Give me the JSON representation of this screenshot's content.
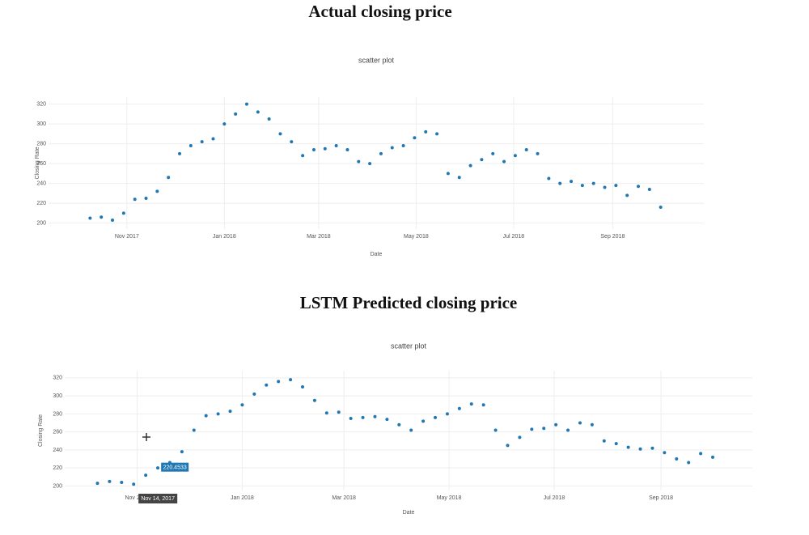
{
  "headings": [
    "Actual closing price",
    "LSTM Predicted closing price"
  ],
  "tooltip": {
    "date": "2017-11-14",
    "date_label": "Nov 14, 2017",
    "value": 220.4533
  },
  "chart_data": [
    {
      "type": "scatter",
      "title": "scatter plot",
      "x_label": "Date",
      "y_label": "Closing Rate",
      "color": "#1f77b4",
      "grid": true,
      "xlim": [
        "2017-09-13",
        "2018-10-28"
      ],
      "ylim": [
        194,
        327
      ],
      "xticks": [
        {
          "value": "2017-11-01",
          "label": "Nov 2017"
        },
        {
          "value": "2018-01-01",
          "label": "Jan 2018"
        },
        {
          "value": "2018-03-01",
          "label": "Mar 2018"
        },
        {
          "value": "2018-05-01",
          "label": "May 2018"
        },
        {
          "value": "2018-07-01",
          "label": "Jul 2018"
        },
        {
          "value": "2018-09-01",
          "label": "Sep 2018"
        }
      ],
      "yticks": [
        200,
        220,
        240,
        260,
        280,
        300,
        320
      ],
      "x": [
        "2017-10-09",
        "2017-10-16",
        "2017-10-23",
        "2017-10-30",
        "2017-11-06",
        "2017-11-13",
        "2017-11-20",
        "2017-11-27",
        "2017-12-04",
        "2017-12-11",
        "2017-12-18",
        "2017-12-25",
        "2018-01-01",
        "2018-01-08",
        "2018-01-15",
        "2018-01-22",
        "2018-01-29",
        "2018-02-05",
        "2018-02-12",
        "2018-02-19",
        "2018-02-26",
        "2018-03-05",
        "2018-03-12",
        "2018-03-19",
        "2018-03-26",
        "2018-04-02",
        "2018-04-09",
        "2018-04-16",
        "2018-04-23",
        "2018-04-30",
        "2018-05-07",
        "2018-05-14",
        "2018-05-21",
        "2018-05-28",
        "2018-06-04",
        "2018-06-11",
        "2018-06-18",
        "2018-06-25",
        "2018-07-02",
        "2018-07-09",
        "2018-07-16",
        "2018-07-23",
        "2018-07-30",
        "2018-08-06",
        "2018-08-13",
        "2018-08-20",
        "2018-08-27",
        "2018-09-03",
        "2018-09-10",
        "2018-09-17",
        "2018-09-24",
        "2018-10-01"
      ],
      "values": [
        205,
        206,
        203,
        210,
        224,
        225,
        232,
        246,
        270,
        278,
        282,
        285,
        300,
        310,
        320,
        312,
        305,
        290,
        282,
        268,
        274,
        275,
        278,
        274,
        262,
        260,
        270,
        276,
        278,
        286,
        292,
        290,
        250,
        246,
        258,
        264,
        270,
        262,
        268,
        274,
        270,
        245,
        240,
        242,
        238,
        240,
        236,
        238,
        228,
        237,
        234,
        216
      ]
    },
    {
      "type": "scatter",
      "title": "scatter plot",
      "x_label": "Date",
      "y_label": "Closing Rate",
      "color": "#1f77b4",
      "grid": true,
      "xlim": [
        "2017-09-20",
        "2018-10-24"
      ],
      "ylim": [
        195,
        328
      ],
      "xticks": [
        {
          "value": "2017-11-01",
          "label": "Nov 2017"
        },
        {
          "value": "2018-01-01",
          "label": "Jan 2018"
        },
        {
          "value": "2018-03-01",
          "label": "Mar 2018"
        },
        {
          "value": "2018-05-01",
          "label": "May 2018"
        },
        {
          "value": "2018-07-01",
          "label": "Jul 2018"
        },
        {
          "value": "2018-09-01",
          "label": "Sep 2018"
        }
      ],
      "yticks": [
        200,
        220,
        240,
        260,
        280,
        300,
        320
      ],
      "x": [
        "2017-10-09",
        "2017-10-16",
        "2017-10-23",
        "2017-10-30",
        "2017-11-06",
        "2017-11-13",
        "2017-11-20",
        "2017-11-27",
        "2017-12-04",
        "2017-12-11",
        "2017-12-18",
        "2017-12-25",
        "2018-01-01",
        "2018-01-08",
        "2018-01-15",
        "2018-01-22",
        "2018-01-29",
        "2018-02-05",
        "2018-02-12",
        "2018-02-19",
        "2018-02-26",
        "2018-03-05",
        "2018-03-12",
        "2018-03-19",
        "2018-03-26",
        "2018-04-02",
        "2018-04-09",
        "2018-04-16",
        "2018-04-23",
        "2018-04-30",
        "2018-05-07",
        "2018-05-14",
        "2018-05-21",
        "2018-05-28",
        "2018-06-04",
        "2018-06-11",
        "2018-06-18",
        "2018-06-25",
        "2018-07-02",
        "2018-07-09",
        "2018-07-16",
        "2018-07-23",
        "2018-07-30",
        "2018-08-06",
        "2018-08-13",
        "2018-08-20",
        "2018-08-27",
        "2018-09-03",
        "2018-09-10",
        "2018-09-17",
        "2018-09-24",
        "2018-10-01"
      ],
      "values": [
        203,
        205,
        204,
        202,
        212,
        220,
        226,
        238,
        262,
        278,
        280,
        283,
        290,
        302,
        312,
        316,
        318,
        310,
        295,
        281,
        282,
        275,
        276,
        277,
        274,
        268,
        262,
        272,
        276,
        280,
        286,
        291,
        290,
        262,
        245,
        254,
        263,
        264,
        268,
        262,
        270,
        268,
        250,
        247,
        243,
        241,
        242,
        237,
        230,
        226,
        236,
        232
      ]
    }
  ]
}
